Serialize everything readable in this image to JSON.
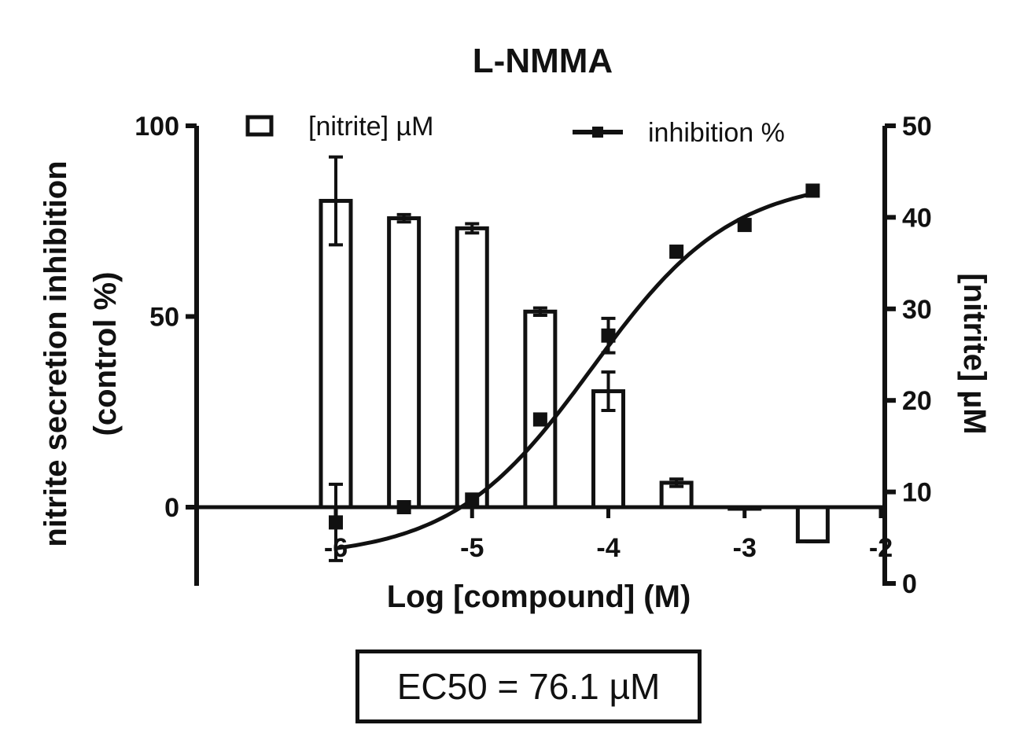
{
  "chart_data": {
    "type": "bar+line",
    "title": "L-NMMA",
    "xlabel": "Log [compound] (M)",
    "ylabel_left_line1": "nitrite secretion inhibition",
    "ylabel_left_line2": "(control %)",
    "ylabel_right": "[nitrite] µM",
    "x_range": [
      -7,
      -2
    ],
    "x_ticks": [
      -6,
      -5,
      -4,
      -3,
      -2
    ],
    "x_tick_labels": [
      "-6",
      "-5",
      "-4",
      "-3",
      "-2"
    ],
    "y_left_range": [
      -20,
      100
    ],
    "y_left_ticks": [
      0,
      50,
      100
    ],
    "y_left_tick_labels": [
      "0",
      "50",
      "100"
    ],
    "y_right_range": [
      0,
      50
    ],
    "y_right_ticks": [
      0,
      10,
      20,
      30,
      40,
      50
    ],
    "y_right_tick_labels": [
      "0",
      "10",
      "20",
      "30",
      "40",
      "50"
    ],
    "legend": {
      "bars_label": "[nitrite] µM",
      "line_label": "inhibition %"
    },
    "series": [
      {
        "name": "[nitrite] µM",
        "kind": "bar",
        "axis": "right",
        "x": [
          -6,
          -5.5,
          -5,
          -4.5,
          -4,
          -3.5,
          -3,
          -2.5
        ],
        "values": [
          41.8,
          39.9,
          38.8,
          29.7,
          21.0,
          11.0,
          8.2,
          4.6
        ],
        "errors": [
          4.8,
          0.4,
          0.5,
          0.4,
          2.1,
          0.4,
          0.1,
          0.1
        ]
      },
      {
        "name": "inhibition %",
        "kind": "line-scatter",
        "axis": "left",
        "x": [
          -6,
          -5.5,
          -5,
          -4.5,
          -4,
          -3.5,
          -3,
          -2.5
        ],
        "values": [
          -4,
          0,
          2,
          23,
          45,
          67,
          74,
          83
        ],
        "errors": [
          10,
          0.5,
          1,
          1,
          4.5,
          1,
          1,
          1
        ],
        "fit_curve": {
          "bottom": -13.3,
          "top": 86.3,
          "logEC50": -4.119,
          "hill": 0.844
        }
      }
    ],
    "annotation": "EC50 = 76.1 µM"
  }
}
